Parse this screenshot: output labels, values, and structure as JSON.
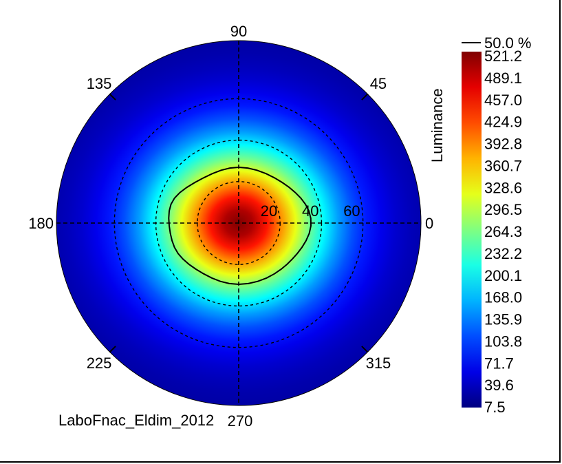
{
  "chart_data": {
    "type": "heatmap",
    "projection": "polar",
    "colorbar_label": "Luminance",
    "colorbar_ticks": [
      "521.2",
      "489.1",
      "457.0",
      "424.9",
      "392.8",
      "360.7",
      "328.6",
      "296.5",
      "264.3",
      "232.2",
      "200.1",
      "168.0",
      "135.9",
      "103.8",
      "71.7",
      "39.6",
      "7.5"
    ],
    "value_range": [
      7.5,
      521.2
    ],
    "colormap": "jet",
    "contour_legend": "50.0 %",
    "contour_level": 260.6,
    "center_value": 521.2,
    "edge_value": 20,
    "angle_labels": [
      {
        "angle": 90,
        "text": "90"
      },
      {
        "angle": 45,
        "text": "45"
      },
      {
        "angle": 135,
        "text": "135"
      },
      {
        "angle": 180,
        "text": "180"
      },
      {
        "angle": 0,
        "text": "0"
      },
      {
        "angle": 225,
        "text": "225"
      },
      {
        "angle": 315,
        "text": "315"
      },
      {
        "angle": 270,
        "text": "270"
      }
    ],
    "radial_rings": [
      20,
      40,
      60
    ],
    "radial_labels": [
      "20",
      "40",
      "60"
    ],
    "radial_max": 88,
    "grid": true,
    "caption": "LaboFnac_Eldim_2012"
  }
}
